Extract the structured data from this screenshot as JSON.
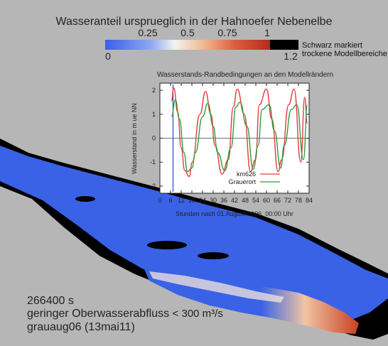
{
  "title": "Wasseranteil ursprueglich in der Hahnoefer Nebenelbe",
  "colorbar": {
    "top_ticks": [
      "0.25",
      "0.5",
      "0.75",
      "1"
    ],
    "bottom_left": "0",
    "bottom_right": "1.2",
    "dry_note_line1": "Schwarz markiert",
    "dry_note_line2": "trockene Modellbereiche",
    "dry_color": "#000000"
  },
  "chart_data": {
    "type": "line",
    "title": "Wasserstands-Randbedingungen an den Modellrändern",
    "xlabel": "Stunden nach 01.August 2006, 00:00 Uhr",
    "ylabel": "Wasserstand in m ue NN",
    "xlim": [
      0,
      84
    ],
    "ylim": [
      -2.3,
      2.3
    ],
    "xticks": [
      "0",
      "6",
      "12",
      "18",
      "24",
      "30",
      "36",
      "42",
      "48",
      "54",
      "60",
      "66",
      "72",
      "78",
      "84"
    ],
    "yticks": [
      "2",
      "1",
      "0",
      "-1",
      "-2"
    ],
    "current_time_h": 7.4,
    "legend_position": "lower-right",
    "series": [
      {
        "name": "km626",
        "color": "#e5393f",
        "x": [
          6.5,
          7.8,
          10.0,
          12.0,
          14.0,
          16.5,
          18.2,
          22.5,
          25.7,
          28.7,
          31.0,
          35.0,
          38.5,
          41.3,
          43.5,
          47.5,
          51.0,
          53.8,
          56.0,
          60.0,
          63.0,
          66.5,
          68.5,
          72.5,
          75.5,
          79.3,
          81.5,
          83.0
        ],
        "y": [
          1.55,
          2.1,
          1.1,
          -0.4,
          -1.35,
          -1.6,
          -1.0,
          1.0,
          1.95,
          1.0,
          -0.3,
          -1.5,
          -0.9,
          1.3,
          2.05,
          1.0,
          -1.4,
          -0.9,
          1.4,
          2.05,
          0.8,
          -1.4,
          -0.9,
          1.4,
          2.05,
          -1.0,
          1.7,
          0.6
        ]
      },
      {
        "name": "Grauerort",
        "color": "#2e9e3a",
        "x": [
          6.5,
          8.7,
          11.0,
          13.5,
          15.5,
          18.0,
          20.0,
          24.0,
          27.0,
          30.0,
          32.5,
          36.5,
          40.0,
          42.8,
          45.0,
          49.0,
          52.5,
          55.3,
          57.5,
          61.5,
          64.5,
          68.0,
          70.0,
          74.0,
          77.0,
          80.8,
          83.0
        ],
        "y": [
          0.9,
          1.6,
          0.8,
          -0.6,
          -1.4,
          -1.25,
          -0.6,
          0.9,
          1.45,
          0.5,
          -0.6,
          -1.35,
          -0.4,
          1.3,
          1.5,
          0.5,
          -1.3,
          -0.3,
          1.2,
          1.4,
          0.3,
          -1.25,
          -0.3,
          1.2,
          1.4,
          -0.9,
          1.4
        ]
      }
    ]
  },
  "info": {
    "time": "266400 s",
    "flow": "geringer Oberwasserabfluss",
    "flow_value": "< 300 m³/s",
    "run": "grauaug06 (13mai11)"
  }
}
